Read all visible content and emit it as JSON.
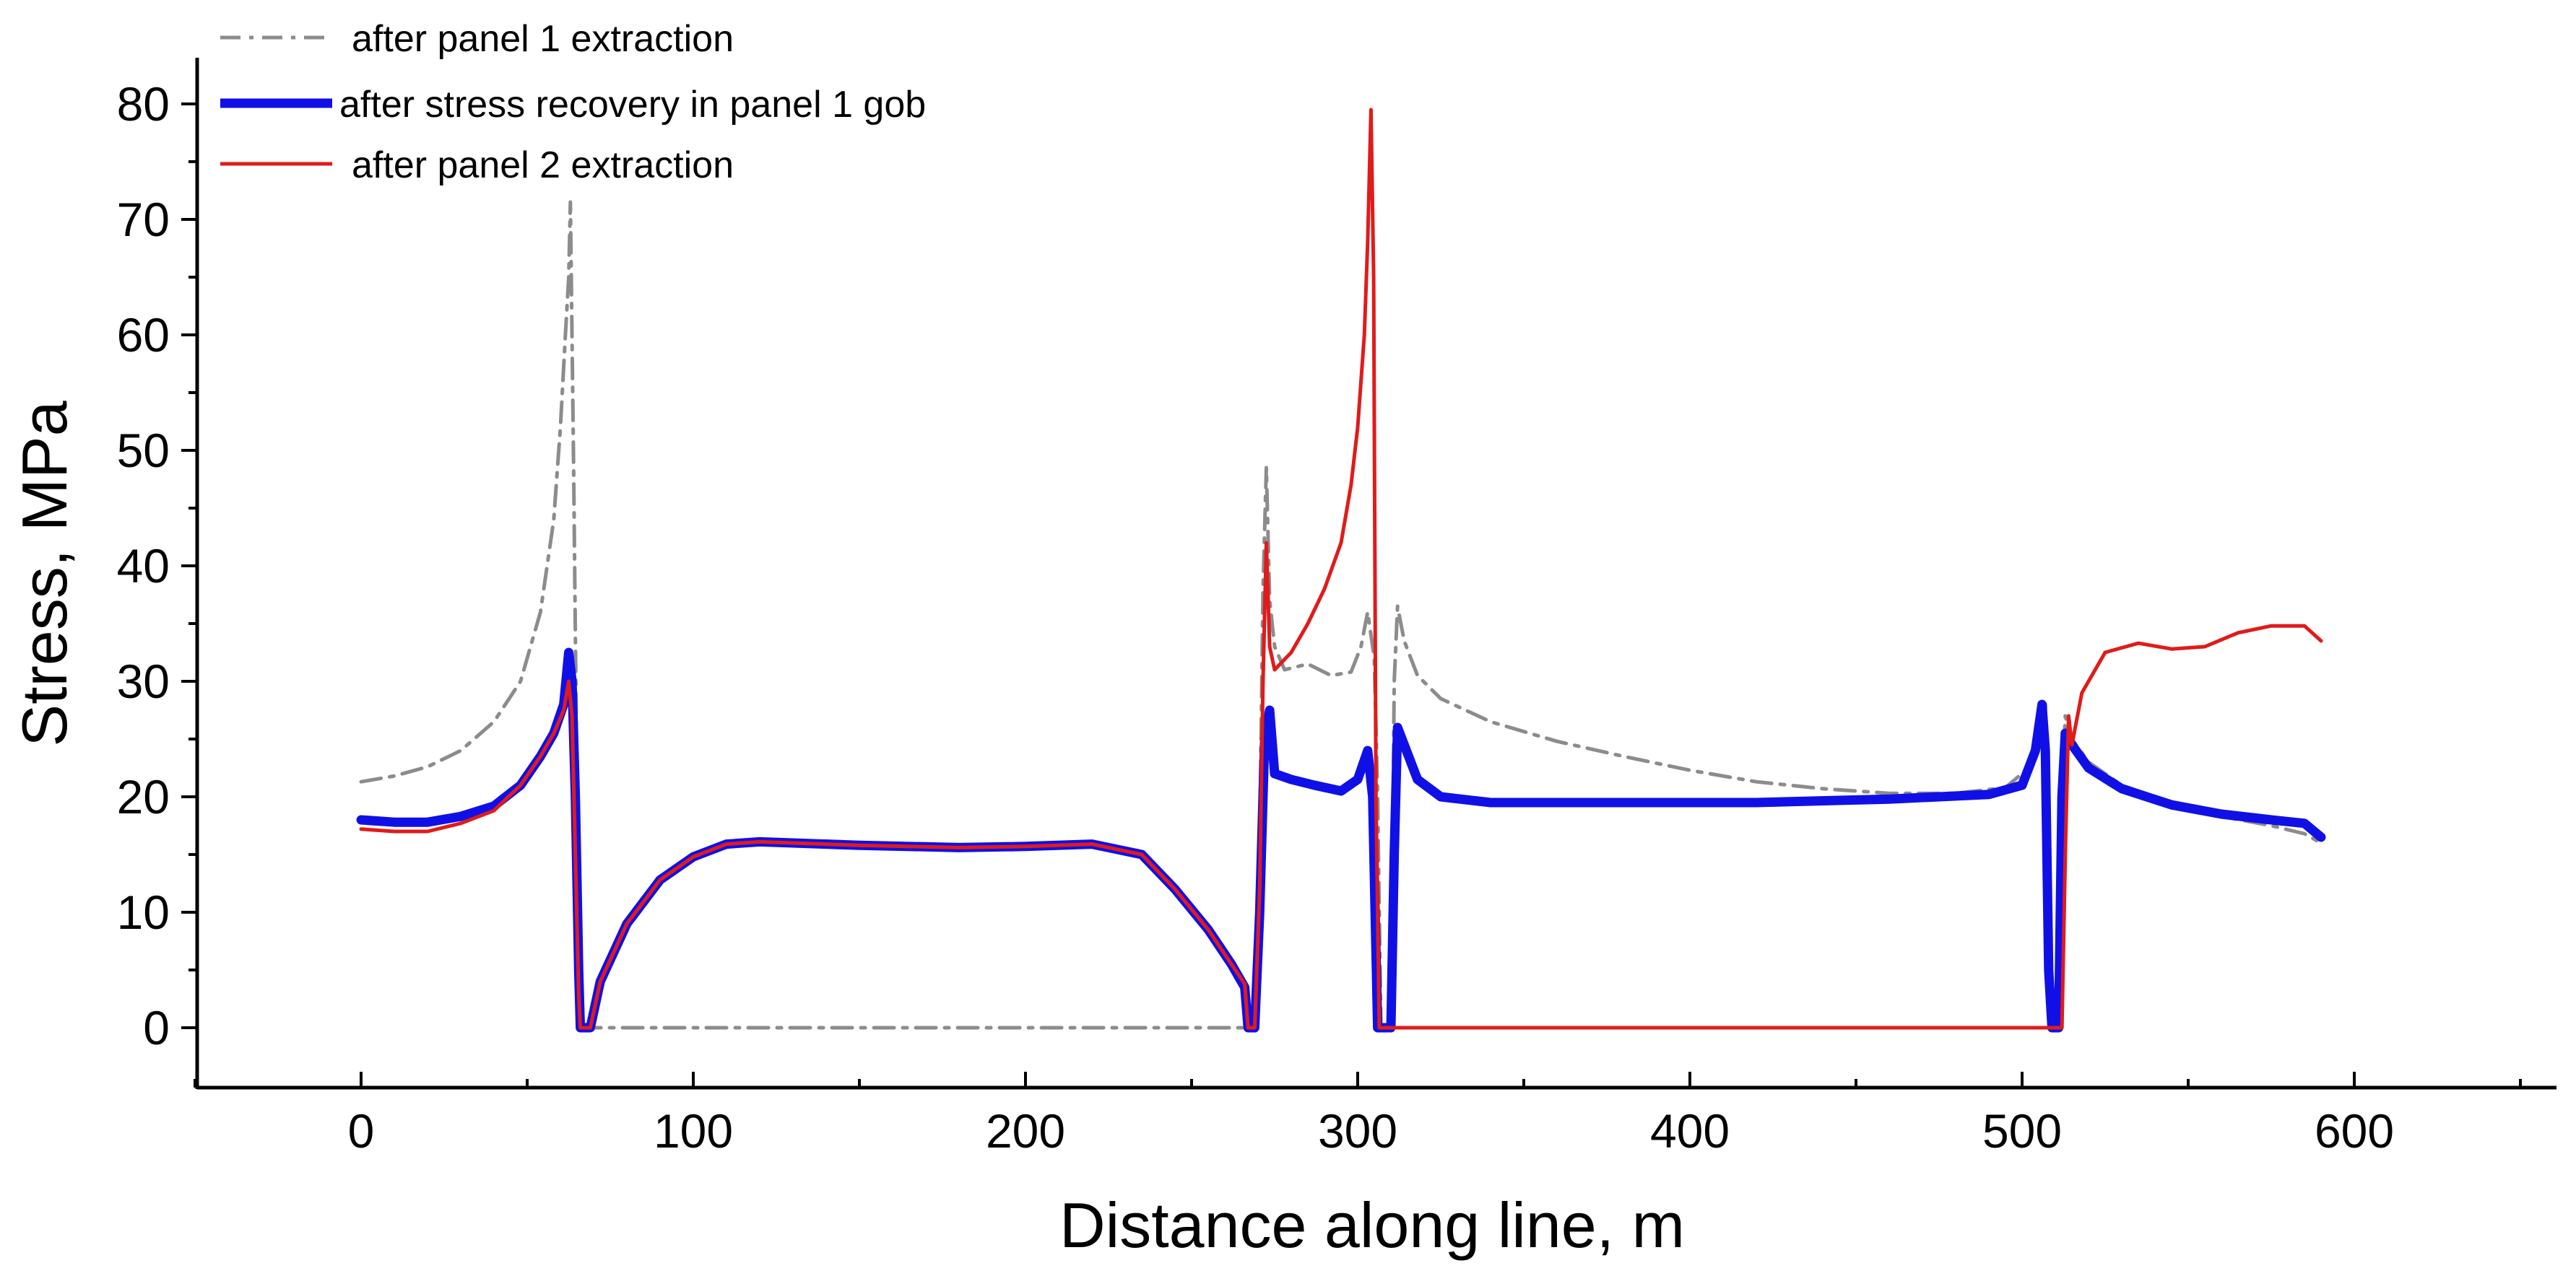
{
  "chart_data": {
    "type": "line",
    "title": "",
    "xlabel": "Distance along line, m",
    "ylabel": "Stress, MPa",
    "xlim": [
      -50,
      650
    ],
    "ylim": [
      -5,
      80
    ],
    "xticks": [
      0,
      100,
      200,
      300,
      400,
      500,
      600
    ],
    "yticks": [
      0,
      10,
      20,
      30,
      40,
      50,
      60,
      70,
      80
    ],
    "legend_position": "top-left",
    "series": [
      {
        "name": "after panel 1 extraction",
        "color": "#8c8c8c",
        "style": "dash-dot",
        "points": [
          [
            0,
            21.3
          ],
          [
            10,
            21.8
          ],
          [
            20,
            22.6
          ],
          [
            30,
            24.0
          ],
          [
            40,
            26.5
          ],
          [
            48,
            30.0
          ],
          [
            54,
            36.0
          ],
          [
            58,
            44.0
          ],
          [
            60,
            52.0
          ],
          [
            61.5,
            60.0
          ],
          [
            62.5,
            65.0
          ],
          [
            63,
            71.5
          ],
          [
            64,
            48.0
          ],
          [
            65,
            20.0
          ],
          [
            66,
            0
          ],
          [
            70,
            0
          ],
          [
            100,
            0
          ],
          [
            150,
            0
          ],
          [
            200,
            0
          ],
          [
            250,
            0
          ],
          [
            268,
            0
          ],
          [
            269,
            0
          ],
          [
            270,
            5.0
          ],
          [
            271.5,
            38.0
          ],
          [
            272.5,
            48.5
          ],
          [
            273.5,
            37.0
          ],
          [
            275,
            33.0
          ],
          [
            278,
            31.0
          ],
          [
            285,
            31.5
          ],
          [
            292,
            30.5
          ],
          [
            298,
            30.8
          ],
          [
            301,
            33.0
          ],
          [
            303,
            36.0
          ],
          [
            305,
            32.0
          ],
          [
            306,
            20.0
          ],
          [
            307,
            0
          ],
          [
            310,
            0
          ],
          [
            311,
            30.0
          ],
          [
            312,
            36.5
          ],
          [
            314,
            33.5
          ],
          [
            318,
            30.5
          ],
          [
            325,
            28.5
          ],
          [
            340,
            26.5
          ],
          [
            360,
            24.8
          ],
          [
            380,
            23.5
          ],
          [
            400,
            22.3
          ],
          [
            420,
            21.3
          ],
          [
            440,
            20.7
          ],
          [
            460,
            20.3
          ],
          [
            480,
            20.3
          ],
          [
            495,
            20.8
          ],
          [
            502,
            22.5
          ],
          [
            505,
            25.0
          ],
          [
            507,
            28.0
          ],
          [
            508,
            20.0
          ],
          [
            509,
            0
          ],
          [
            511,
            0
          ],
          [
            512,
            20.0
          ],
          [
            513,
            27.0
          ],
          [
            515,
            25.0
          ],
          [
            520,
            23.0
          ],
          [
            530,
            21.0
          ],
          [
            545,
            19.5
          ],
          [
            560,
            18.3
          ],
          [
            575,
            17.5
          ],
          [
            585,
            16.8
          ],
          [
            590,
            16.0
          ]
        ]
      },
      {
        "name": "after stress recovery in panel 1 gob",
        "color": "#1010e6",
        "style": "solid-thick",
        "points": [
          [
            0,
            18.0
          ],
          [
            10,
            17.8
          ],
          [
            20,
            17.8
          ],
          [
            30,
            18.3
          ],
          [
            40,
            19.2
          ],
          [
            48,
            21.0
          ],
          [
            54,
            23.5
          ],
          [
            58,
            25.5
          ],
          [
            61,
            28.0
          ],
          [
            62.5,
            32.5
          ],
          [
            63.5,
            30.0
          ],
          [
            64.5,
            20.0
          ],
          [
            65.5,
            5.0
          ],
          [
            66,
            0
          ],
          [
            69,
            0
          ],
          [
            72,
            4.0
          ],
          [
            80,
            9.0
          ],
          [
            90,
            12.8
          ],
          [
            100,
            14.8
          ],
          [
            110,
            15.9
          ],
          [
            120,
            16.1
          ],
          [
            150,
            15.8
          ],
          [
            180,
            15.6
          ],
          [
            200,
            15.7
          ],
          [
            220,
            15.9
          ],
          [
            235,
            15.0
          ],
          [
            245,
            12.0
          ],
          [
            255,
            8.5
          ],
          [
            262,
            5.5
          ],
          [
            266,
            3.5
          ],
          [
            267,
            0
          ],
          [
            269,
            0
          ],
          [
            270.5,
            10.0
          ],
          [
            272,
            25.0
          ],
          [
            273.5,
            27.5
          ],
          [
            275,
            22.0
          ],
          [
            280,
            21.5
          ],
          [
            287,
            21.0
          ],
          [
            295,
            20.5
          ],
          [
            300,
            21.5
          ],
          [
            303,
            24.0
          ],
          [
            304.5,
            20.0
          ],
          [
            306,
            0
          ],
          [
            310,
            0
          ],
          [
            311,
            15.0
          ],
          [
            312,
            26.0
          ],
          [
            314,
            24.5
          ],
          [
            318,
            21.5
          ],
          [
            325,
            20.0
          ],
          [
            340,
            19.5
          ],
          [
            380,
            19.5
          ],
          [
            420,
            19.5
          ],
          [
            460,
            19.8
          ],
          [
            490,
            20.2
          ],
          [
            500,
            21.0
          ],
          [
            504,
            24.0
          ],
          [
            506,
            28.0
          ],
          [
            507,
            24.0
          ],
          [
            508,
            5.0
          ],
          [
            509,
            0
          ],
          [
            511,
            0
          ],
          [
            512,
            20.0
          ],
          [
            513,
            25.5
          ],
          [
            515,
            24.5
          ],
          [
            520,
            22.5
          ],
          [
            530,
            20.7
          ],
          [
            545,
            19.3
          ],
          [
            560,
            18.5
          ],
          [
            575,
            18.0
          ],
          [
            585,
            17.7
          ],
          [
            590,
            16.5
          ]
        ]
      },
      {
        "name": "after panel 2 extraction",
        "color": "#e01b1b",
        "style": "solid",
        "points": [
          [
            0,
            17.2
          ],
          [
            10,
            17.0
          ],
          [
            20,
            17.0
          ],
          [
            30,
            17.7
          ],
          [
            40,
            18.8
          ],
          [
            48,
            21.0
          ],
          [
            54,
            23.5
          ],
          [
            58,
            25.5
          ],
          [
            61,
            27.5
          ],
          [
            62.5,
            30.0
          ],
          [
            63.5,
            27.0
          ],
          [
            64.5,
            15.0
          ],
          [
            65.5,
            3.0
          ],
          [
            66,
            0
          ],
          [
            69,
            0
          ],
          [
            72,
            4.0
          ],
          [
            80,
            9.0
          ],
          [
            90,
            12.8
          ],
          [
            100,
            14.8
          ],
          [
            110,
            15.9
          ],
          [
            120,
            16.1
          ],
          [
            150,
            15.8
          ],
          [
            180,
            15.6
          ],
          [
            200,
            15.7
          ],
          [
            220,
            15.9
          ],
          [
            235,
            15.0
          ],
          [
            245,
            12.0
          ],
          [
            255,
            8.5
          ],
          [
            262,
            5.5
          ],
          [
            266,
            3.8
          ],
          [
            267,
            0
          ],
          [
            269,
            0
          ],
          [
            270.5,
            12.0
          ],
          [
            271.5,
            30.0
          ],
          [
            272.5,
            42.0
          ],
          [
            273.5,
            33.0
          ],
          [
            275,
            31.0
          ],
          [
            280,
            32.5
          ],
          [
            285,
            35.0
          ],
          [
            290,
            38.0
          ],
          [
            295,
            42.0
          ],
          [
            298,
            47.0
          ],
          [
            300,
            52.0
          ],
          [
            302,
            60.0
          ],
          [
            303,
            68.0
          ],
          [
            304,
            79.5
          ],
          [
            304.8,
            65.0
          ],
          [
            305.5,
            20.0
          ],
          [
            306.5,
            0
          ],
          [
            310,
            0
          ],
          [
            350,
            0
          ],
          [
            400,
            0
          ],
          [
            450,
            0
          ],
          [
            500,
            0
          ],
          [
            512,
            0
          ],
          [
            513,
            15.0
          ],
          [
            514,
            27.0
          ],
          [
            515,
            24.5
          ],
          [
            518,
            29.0
          ],
          [
            525,
            32.5
          ],
          [
            535,
            33.3
          ],
          [
            545,
            32.8
          ],
          [
            555,
            33.0
          ],
          [
            565,
            34.2
          ],
          [
            575,
            34.8
          ],
          [
            585,
            34.8
          ],
          [
            590,
            33.5
          ]
        ]
      }
    ]
  }
}
